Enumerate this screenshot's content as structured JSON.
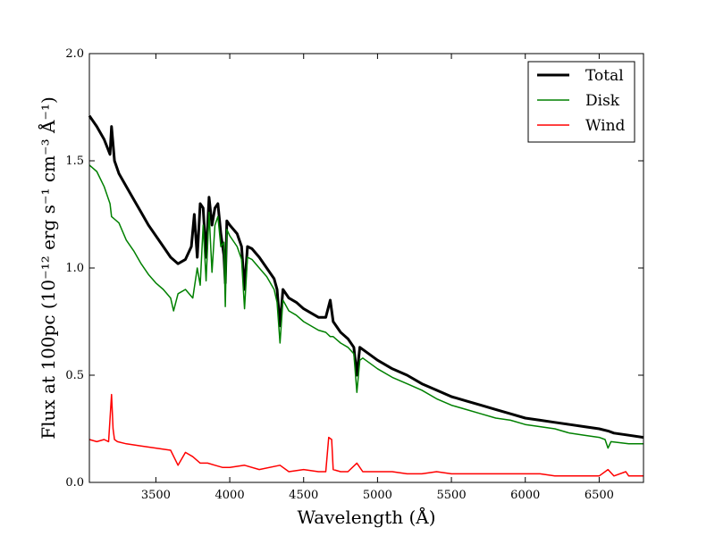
{
  "chart_data": {
    "type": "line",
    "xlabel": "Wavelength (Å)",
    "ylabel": "Flux at 100pc (10⁻¹² erg s⁻¹ cm⁻³ Å⁻¹)",
    "xlim": [
      3050,
      6800
    ],
    "ylim": [
      0.0,
      2.0
    ],
    "xticks": [
      3500,
      4000,
      4500,
      5000,
      5500,
      6000,
      6500
    ],
    "yticks": [
      0.0,
      0.5,
      1.0,
      1.5,
      2.0
    ],
    "xtick_labels": [
      "3500",
      "4000",
      "4500",
      "5000",
      "5500",
      "6000",
      "6500"
    ],
    "ytick_labels": [
      "0.0",
      "0.5",
      "1.0",
      "1.5",
      "2.0"
    ],
    "grid": false,
    "legend_position": "top-right",
    "series": [
      {
        "name": "Total",
        "color": "#000000",
        "line_width": 3,
        "x": [
          3050,
          3100,
          3150,
          3190,
          3200,
          3220,
          3250,
          3300,
          3350,
          3400,
          3450,
          3500,
          3550,
          3600,
          3650,
          3700,
          3740,
          3760,
          3780,
          3800,
          3820,
          3840,
          3860,
          3880,
          3900,
          3920,
          3940,
          3960,
          3970,
          3980,
          4000,
          4050,
          4080,
          4100,
          4120,
          4150,
          4200,
          4250,
          4300,
          4320,
          4340,
          4360,
          4400,
          4450,
          4500,
          4600,
          4650,
          4680,
          4700,
          4750,
          4800,
          4840,
          4860,
          4880,
          4900,
          5000,
          5100,
          5200,
          5300,
          5400,
          5500,
          5600,
          5700,
          5800,
          5900,
          6000,
          6100,
          6200,
          6300,
          6400,
          6500,
          6560,
          6600,
          6700,
          6800
        ],
        "y": [
          1.71,
          1.66,
          1.6,
          1.53,
          1.66,
          1.5,
          1.44,
          1.38,
          1.32,
          1.26,
          1.2,
          1.15,
          1.1,
          1.05,
          1.02,
          1.04,
          1.1,
          1.25,
          1.05,
          1.3,
          1.28,
          1.05,
          1.33,
          1.2,
          1.28,
          1.3,
          1.16,
          1.06,
          0.93,
          1.22,
          1.2,
          1.16,
          1.1,
          0.9,
          1.1,
          1.09,
          1.05,
          1.0,
          0.95,
          0.9,
          0.73,
          0.9,
          0.86,
          0.84,
          0.81,
          0.77,
          0.77,
          0.85,
          0.75,
          0.7,
          0.67,
          0.63,
          0.5,
          0.63,
          0.62,
          0.57,
          0.53,
          0.5,
          0.46,
          0.43,
          0.4,
          0.38,
          0.36,
          0.34,
          0.32,
          0.3,
          0.29,
          0.28,
          0.27,
          0.26,
          0.25,
          0.24,
          0.23,
          0.22,
          0.21
        ]
      },
      {
        "name": "Disk",
        "color": "#008000",
        "line_width": 1.5,
        "x": [
          3050,
          3100,
          3150,
          3190,
          3200,
          3250,
          3300,
          3350,
          3400,
          3450,
          3500,
          3550,
          3600,
          3620,
          3650,
          3700,
          3750,
          3780,
          3800,
          3820,
          3840,
          3860,
          3880,
          3900,
          3920,
          3940,
          3960,
          3970,
          3980,
          4000,
          4050,
          4080,
          4100,
          4120,
          4150,
          4200,
          4250,
          4300,
          4320,
          4340,
          4360,
          4400,
          4450,
          4500,
          4600,
          4650,
          4680,
          4700,
          4750,
          4800,
          4840,
          4860,
          4880,
          4900,
          5000,
          5100,
          5200,
          5300,
          5400,
          5500,
          5600,
          5700,
          5800,
          5900,
          6000,
          6100,
          6200,
          6300,
          6400,
          6500,
          6540,
          6560,
          6580,
          6700,
          6800
        ],
        "y": [
          1.48,
          1.45,
          1.38,
          1.3,
          1.24,
          1.21,
          1.13,
          1.08,
          1.02,
          0.97,
          0.93,
          0.9,
          0.86,
          0.8,
          0.88,
          0.9,
          0.86,
          1.0,
          0.92,
          1.2,
          0.94,
          1.26,
          0.98,
          1.2,
          1.24,
          1.1,
          1.12,
          0.82,
          1.18,
          1.15,
          1.1,
          1.04,
          0.81,
          1.05,
          1.04,
          1.0,
          0.96,
          0.9,
          0.84,
          0.65,
          0.85,
          0.8,
          0.78,
          0.75,
          0.71,
          0.7,
          0.68,
          0.68,
          0.65,
          0.63,
          0.6,
          0.42,
          0.57,
          0.58,
          0.53,
          0.49,
          0.46,
          0.43,
          0.39,
          0.36,
          0.34,
          0.32,
          0.3,
          0.29,
          0.27,
          0.26,
          0.25,
          0.23,
          0.22,
          0.21,
          0.2,
          0.16,
          0.19,
          0.18,
          0.18
        ]
      },
      {
        "name": "Wind",
        "color": "#ff0000",
        "line_width": 1.5,
        "x": [
          3050,
          3100,
          3150,
          3180,
          3200,
          3210,
          3220,
          3240,
          3300,
          3400,
          3500,
          3600,
          3650,
          3700,
          3750,
          3800,
          3850,
          3900,
          3950,
          4000,
          4100,
          4200,
          4340,
          4400,
          4500,
          4600,
          4650,
          4670,
          4690,
          4700,
          4750,
          4800,
          4860,
          4900,
          5000,
          5100,
          5200,
          5300,
          5400,
          5500,
          5600,
          5700,
          5800,
          5900,
          6000,
          6100,
          6200,
          6300,
          6400,
          6500,
          6560,
          6600,
          6680,
          6700,
          6800
        ],
        "y": [
          0.2,
          0.19,
          0.2,
          0.19,
          0.41,
          0.25,
          0.2,
          0.19,
          0.18,
          0.17,
          0.16,
          0.15,
          0.08,
          0.14,
          0.12,
          0.09,
          0.09,
          0.08,
          0.07,
          0.07,
          0.08,
          0.06,
          0.08,
          0.05,
          0.06,
          0.05,
          0.05,
          0.21,
          0.2,
          0.06,
          0.05,
          0.05,
          0.09,
          0.05,
          0.05,
          0.05,
          0.04,
          0.04,
          0.05,
          0.04,
          0.04,
          0.04,
          0.04,
          0.04,
          0.04,
          0.04,
          0.03,
          0.03,
          0.03,
          0.03,
          0.06,
          0.03,
          0.05,
          0.03,
          0.03
        ]
      }
    ]
  }
}
